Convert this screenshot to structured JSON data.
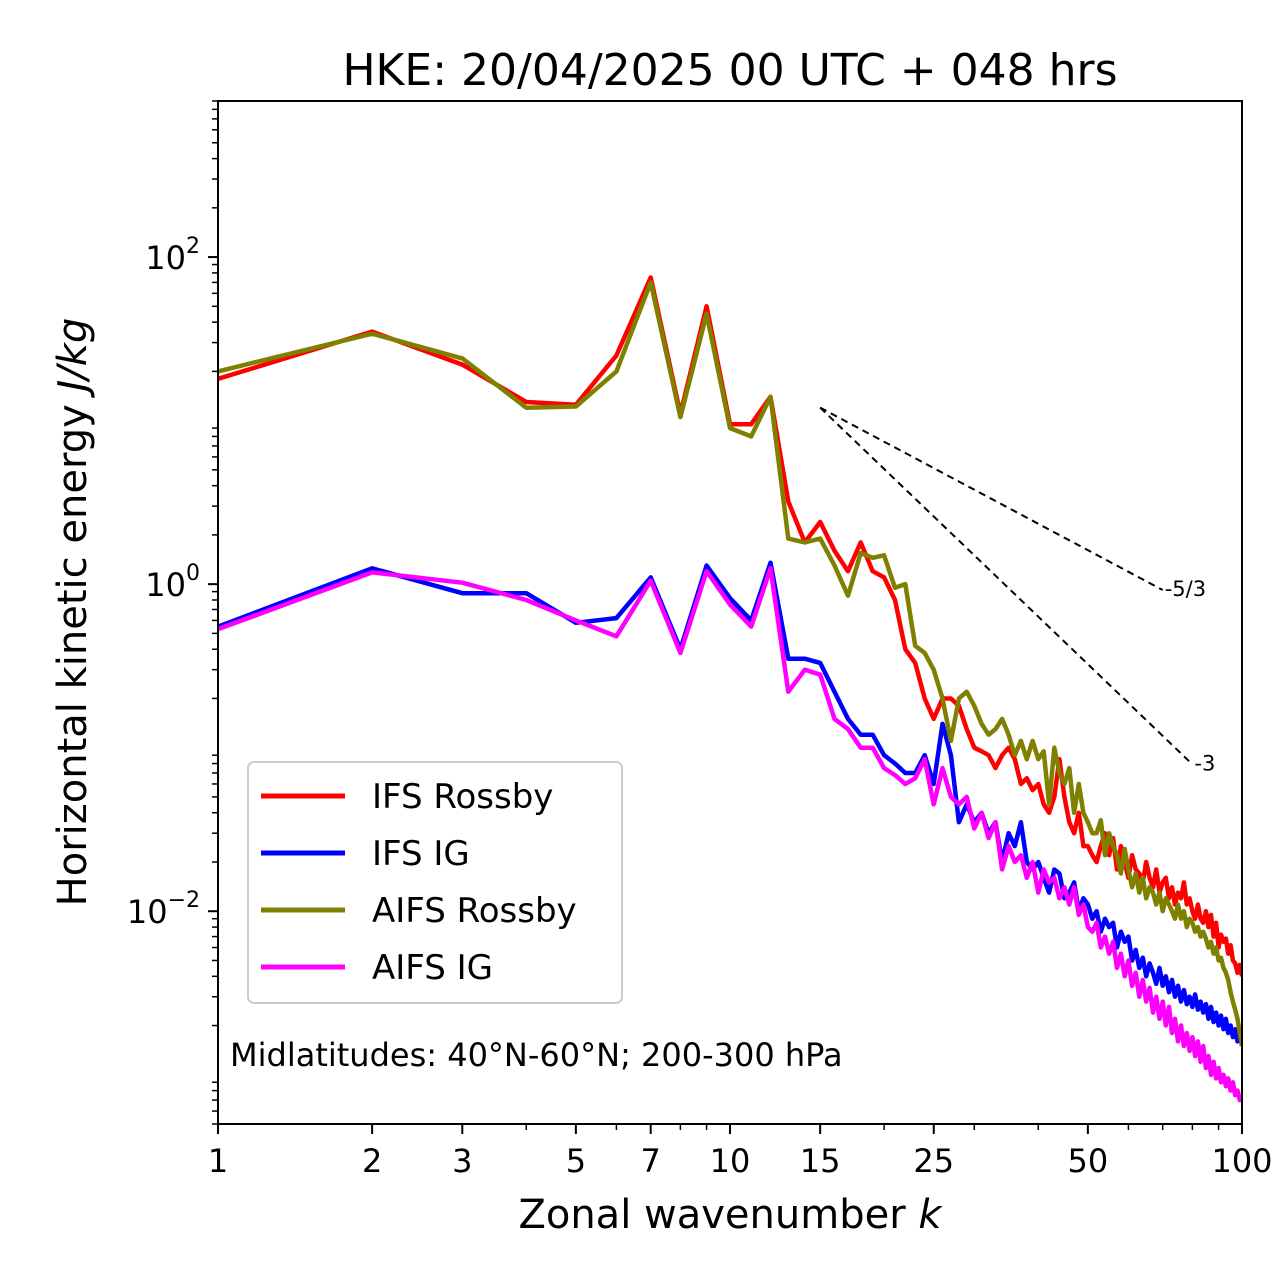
{
  "chart_data": {
    "type": "line",
    "title": "HKE: 20/04/2025 00 UTC + 048 hrs",
    "xlabel": "Zonal wavenumber",
    "xlabel_var": "k",
    "ylabel": "Horizontal kinetic energy",
    "ylabel_unit": "J/kg",
    "x_scale": "log",
    "y_scale": "log",
    "xlim": [
      1,
      100
    ],
    "ylim": [
      0.0005,
      900
    ],
    "x_ticks": [
      {
        "value": 1,
        "label": "1"
      },
      {
        "value": 2,
        "label": "2"
      },
      {
        "value": 3,
        "label": "3"
      },
      {
        "value": 5,
        "label": "5"
      },
      {
        "value": 7,
        "label": "7"
      },
      {
        "value": 10,
        "label": "10"
      },
      {
        "value": 15,
        "label": "15"
      },
      {
        "value": 25,
        "label": "25"
      },
      {
        "value": 50,
        "label": "50"
      },
      {
        "value": 100,
        "label": "100"
      }
    ],
    "y_ticks": [
      {
        "value": 100,
        "base": "10",
        "exp": "2"
      },
      {
        "value": 1,
        "base": "10",
        "exp": "0"
      },
      {
        "value": 0.01,
        "base": "10",
        "exp": "−2"
      }
    ],
    "annotation": "Midlatitudes: 40°N-60°N; 200-300 hPa",
    "legend_position": "lower-left",
    "reference_lines": [
      {
        "label": "-5/3",
        "slope": -1.6667,
        "x_start": 15,
        "y_start": 12,
        "x_end": 70,
        "color": "#000000"
      },
      {
        "label": "-3",
        "slope": -3,
        "x_start": 15,
        "y_start": 12,
        "x_end": 80,
        "color": "#000000"
      }
    ],
    "series": [
      {
        "name": "IFS Rossby",
        "color": "#ff0000",
        "values": [
          18,
          35,
          22,
          13,
          12.5,
          25,
          75,
          11,
          50,
          9.5,
          9.5,
          14,
          3.2,
          1.8,
          2.4,
          1.6,
          1.2,
          1.8,
          1.2,
          1.1,
          0.8,
          0.4,
          0.33,
          0.2,
          0.15,
          0.2,
          0.2,
          0.18,
          0.13,
          0.1,
          0.095,
          0.09,
          0.075,
          0.09,
          0.1,
          0.085,
          0.06,
          0.065,
          0.055,
          0.06,
          0.045,
          0.04,
          0.05,
          0.085,
          0.05,
          0.035,
          0.03,
          0.04,
          0.025,
          0.025,
          0.022,
          0.02,
          0.025,
          0.03,
          0.022,
          0.028,
          0.018,
          0.025,
          0.02,
          0.016,
          0.022,
          0.018,
          0.017,
          0.015,
          0.02,
          0.016,
          0.014,
          0.018,
          0.013,
          0.015,
          0.016,
          0.012,
          0.014,
          0.011,
          0.013,
          0.012,
          0.015,
          0.011,
          0.012,
          0.01,
          0.009,
          0.011,
          0.009,
          0.0085,
          0.01,
          0.008,
          0.0095,
          0.007,
          0.0085,
          0.006,
          0.0072,
          0.0065,
          0.0068,
          0.0055,
          0.0062,
          0.005,
          0.0048,
          0.0042,
          0.0047,
          0.004
        ],
        "x": [
          1,
          2,
          3,
          4,
          5,
          6,
          7,
          8,
          9,
          10,
          11,
          12,
          13,
          14,
          15,
          16,
          17,
          18,
          19,
          20,
          21,
          22,
          23,
          24,
          25,
          26,
          27,
          28,
          29,
          30,
          31,
          32,
          33,
          34,
          35,
          36,
          37,
          38,
          39,
          40,
          41,
          42,
          43,
          44,
          45,
          46,
          47,
          48,
          49,
          50,
          51,
          52,
          53,
          54,
          55,
          56,
          57,
          58,
          59,
          60,
          61,
          62,
          63,
          64,
          65,
          66,
          67,
          68,
          69,
          70,
          71,
          72,
          73,
          74,
          75,
          76,
          77,
          78,
          79,
          80,
          81,
          82,
          83,
          84,
          85,
          86,
          87,
          88,
          89,
          90,
          91,
          92,
          93,
          94,
          95,
          96,
          97,
          98,
          99,
          100
        ]
      },
      {
        "name": "IFS IG",
        "color": "#0000ff",
        "values": [
          0.55,
          1.25,
          0.88,
          0.88,
          0.58,
          0.62,
          1.1,
          0.4,
          1.3,
          0.82,
          0.6,
          1.35,
          0.35,
          0.35,
          0.33,
          0.22,
          0.15,
          0.12,
          0.12,
          0.09,
          0.08,
          0.07,
          0.07,
          0.09,
          0.06,
          0.14,
          0.09,
          0.035,
          0.045,
          0.035,
          0.04,
          0.03,
          0.035,
          0.02,
          0.03,
          0.025,
          0.035,
          0.02,
          0.018,
          0.02,
          0.016,
          0.013,
          0.018,
          0.017,
          0.012,
          0.013,
          0.015,
          0.01,
          0.012,
          0.011,
          0.009,
          0.01,
          0.0075,
          0.009,
          0.008,
          0.0085,
          0.006,
          0.0075,
          0.0065,
          0.007,
          0.005,
          0.0058,
          0.0045,
          0.0052,
          0.004,
          0.0048,
          0.0042,
          0.0036,
          0.0045,
          0.0035,
          0.004,
          0.0032,
          0.0038,
          0.003,
          0.0035,
          0.0028,
          0.0033,
          0.0027,
          0.003,
          0.0026,
          0.0031,
          0.0025,
          0.0028,
          0.0024,
          0.0027,
          0.0022,
          0.0026,
          0.0021,
          0.0024,
          0.002,
          0.0023,
          0.0019,
          0.0022,
          0.0018,
          0.002,
          0.0017,
          0.0019,
          0.0016,
          0.0018,
          0.0015
        ],
        "x": [
          1,
          2,
          3,
          4,
          5,
          6,
          7,
          8,
          9,
          10,
          11,
          12,
          13,
          14,
          15,
          16,
          17,
          18,
          19,
          20,
          21,
          22,
          23,
          24,
          25,
          26,
          27,
          28,
          29,
          30,
          31,
          32,
          33,
          34,
          35,
          36,
          37,
          38,
          39,
          40,
          41,
          42,
          43,
          44,
          45,
          46,
          47,
          48,
          49,
          50,
          51,
          52,
          53,
          54,
          55,
          56,
          57,
          58,
          59,
          60,
          61,
          62,
          63,
          64,
          65,
          66,
          67,
          68,
          69,
          70,
          71,
          72,
          73,
          74,
          75,
          76,
          77,
          78,
          79,
          80,
          81,
          82,
          83,
          84,
          85,
          86,
          87,
          88,
          89,
          90,
          91,
          92,
          93,
          94,
          95,
          96,
          97,
          98,
          99,
          100
        ]
      },
      {
        "name": "AIFS Rossby",
        "color": "#808000",
        "values": [
          20,
          34,
          24,
          12,
          12.2,
          20,
          70,
          10.5,
          45,
          9,
          8,
          14,
          1.9,
          1.8,
          1.9,
          1.3,
          0.85,
          1.55,
          1.45,
          1.5,
          0.95,
          1.0,
          0.42,
          0.38,
          0.3,
          0.2,
          0.11,
          0.2,
          0.22,
          0.18,
          0.14,
          0.12,
          0.13,
          0.15,
          0.12,
          0.09,
          0.11,
          0.085,
          0.11,
          0.085,
          0.095,
          0.045,
          0.1,
          0.07,
          0.06,
          0.075,
          0.04,
          0.06,
          0.04,
          0.035,
          0.03,
          0.03,
          0.036,
          0.022,
          0.03,
          0.025,
          0.022,
          0.017,
          0.024,
          0.018,
          0.014,
          0.017,
          0.013,
          0.016,
          0.012,
          0.014,
          0.013,
          0.011,
          0.013,
          0.01,
          0.012,
          0.011,
          0.01,
          0.009,
          0.011,
          0.009,
          0.01,
          0.008,
          0.009,
          0.0085,
          0.0075,
          0.008,
          0.007,
          0.0075,
          0.0068,
          0.006,
          0.0065,
          0.0055,
          0.006,
          0.005,
          0.0052,
          0.0045,
          0.0042,
          0.0038,
          0.0032,
          0.0028,
          0.0025,
          0.0022,
          0.0018,
          0.0015
        ],
        "x": [
          1,
          2,
          3,
          4,
          5,
          6,
          7,
          8,
          9,
          10,
          11,
          12,
          13,
          14,
          15,
          16,
          17,
          18,
          19,
          20,
          21,
          22,
          23,
          24,
          25,
          26,
          27,
          28,
          29,
          30,
          31,
          32,
          33,
          34,
          35,
          36,
          37,
          38,
          39,
          40,
          41,
          42,
          43,
          44,
          45,
          46,
          47,
          48,
          49,
          50,
          51,
          52,
          53,
          54,
          55,
          56,
          57,
          58,
          59,
          60,
          61,
          62,
          63,
          64,
          65,
          66,
          67,
          68,
          69,
          70,
          71,
          72,
          73,
          74,
          75,
          76,
          77,
          78,
          79,
          80,
          81,
          82,
          83,
          84,
          85,
          86,
          87,
          88,
          89,
          90,
          91,
          92,
          93,
          94,
          95,
          96,
          97,
          98,
          99,
          100
        ]
      },
      {
        "name": "AIFS IG",
        "color": "#ff00ff",
        "values": [
          0.53,
          1.18,
          1.02,
          0.8,
          0.6,
          0.48,
          1.05,
          0.38,
          1.2,
          0.75,
          0.55,
          1.25,
          0.22,
          0.3,
          0.28,
          0.15,
          0.13,
          0.1,
          0.1,
          0.075,
          0.068,
          0.06,
          0.065,
          0.085,
          0.045,
          0.075,
          0.05,
          0.045,
          0.05,
          0.032,
          0.04,
          0.028,
          0.035,
          0.018,
          0.025,
          0.02,
          0.022,
          0.016,
          0.02,
          0.013,
          0.018,
          0.015,
          0.016,
          0.012,
          0.014,
          0.011,
          0.014,
          0.0095,
          0.011,
          0.008,
          0.0075,
          0.0085,
          0.006,
          0.007,
          0.0055,
          0.0065,
          0.0045,
          0.0055,
          0.004,
          0.005,
          0.0035,
          0.0042,
          0.003,
          0.0038,
          0.0028,
          0.0034,
          0.0024,
          0.003,
          0.0022,
          0.0028,
          0.002,
          0.0026,
          0.0018,
          0.0022,
          0.0016,
          0.002,
          0.0015,
          0.0018,
          0.0014,
          0.0017,
          0.0013,
          0.0016,
          0.0012,
          0.0015,
          0.0011,
          0.0013,
          0.001,
          0.0012,
          0.00095,
          0.0011,
          0.0009,
          0.001,
          0.00085,
          0.00095,
          0.0008,
          0.0009,
          0.00075,
          0.0008,
          0.0007,
          0.00075
        ],
        "x": [
          1,
          2,
          3,
          4,
          5,
          6,
          7,
          8,
          9,
          10,
          11,
          12,
          13,
          14,
          15,
          16,
          17,
          18,
          19,
          20,
          21,
          22,
          23,
          24,
          25,
          26,
          27,
          28,
          29,
          30,
          31,
          32,
          33,
          34,
          35,
          36,
          37,
          38,
          39,
          40,
          41,
          42,
          43,
          44,
          45,
          46,
          47,
          48,
          49,
          50,
          51,
          52,
          53,
          54,
          55,
          56,
          57,
          58,
          59,
          60,
          61,
          62,
          63,
          64,
          65,
          66,
          67,
          68,
          69,
          70,
          71,
          72,
          73,
          74,
          75,
          76,
          77,
          78,
          79,
          80,
          81,
          82,
          83,
          84,
          85,
          86,
          87,
          88,
          89,
          90,
          91,
          92,
          93,
          94,
          95,
          96,
          97,
          98,
          99,
          100
        ]
      }
    ]
  }
}
